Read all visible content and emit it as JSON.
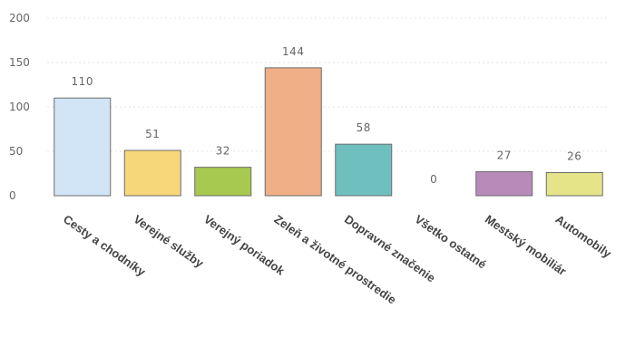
{
  "chart_data": {
    "type": "bar",
    "title": "",
    "xlabel": "",
    "ylabel": "",
    "ylim": [
      0,
      200
    ],
    "yticks": [
      0,
      50,
      100,
      150,
      200
    ],
    "grid": true,
    "legend": "none",
    "categories": [
      "Cesty a chodníky",
      "Verejné služby",
      "Verejný poriadok",
      "Zeleň a životné prostredie",
      "Dopravné značenie",
      "Všetko ostatné",
      "Mestský mobiliár",
      "Automobily"
    ],
    "values": [
      110,
      51,
      32,
      144,
      58,
      0,
      27,
      26
    ],
    "colors": [
      "#d2e5f7",
      "#f6d77a",
      "#a7c94f",
      "#f0af86",
      "#6fbfbf",
      "#d9d9d9",
      "#b88ab9",
      "#e5e489"
    ]
  }
}
